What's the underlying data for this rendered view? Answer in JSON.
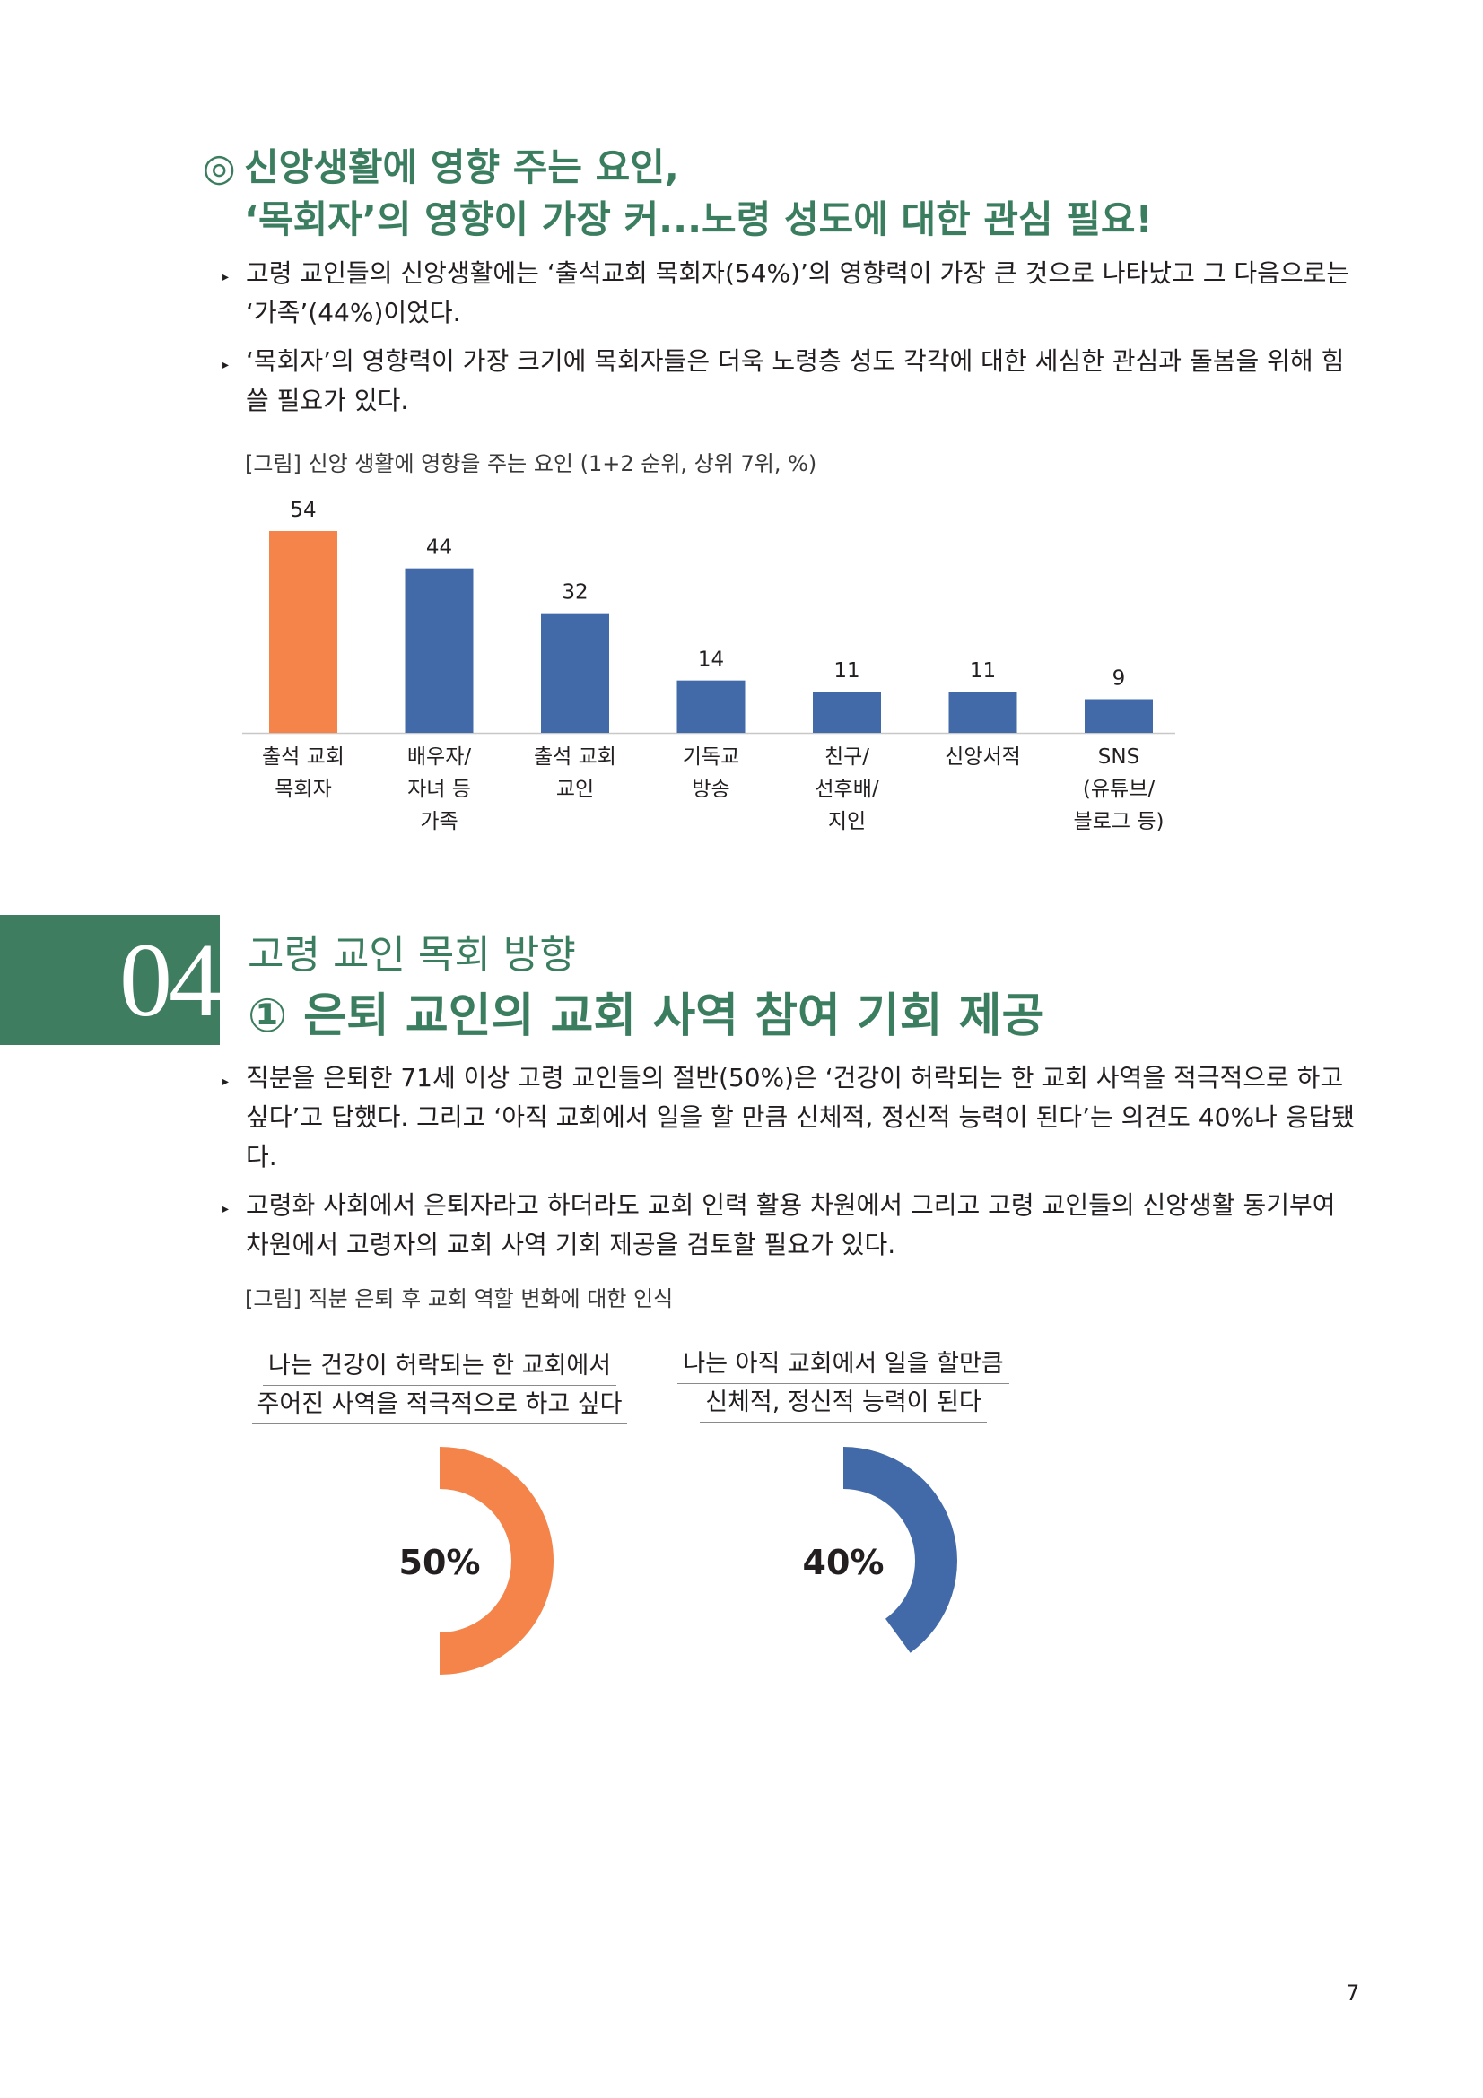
{
  "heading1": {
    "mark": "◎",
    "line1": "신앙생활에 영향 주는 요인,",
    "line2": "‘목회자’의 영향이 가장 커...노령 성도에 대한 관심 필요!"
  },
  "bullets1": [
    "고령 교인들의 신앙생활에는 ‘출석교회 목회자(54%)’의 영향력이 가장 큰 것으로 나타났고 그 다음으로는 ‘가족’(44%)이었다.",
    "‘목회자’의 영향력이 가장 크기에 목회자들은 더욱 노령층 성도 각각에 대한 세심한 관심과 돌봄을 위해 힘쓸 필요가 있다."
  ],
  "figure1_caption": "[그림] 신앙 생활에 영향을 주는 요인 (1+2 순위, 상위 7위, %)",
  "chart_data": {
    "type": "bar",
    "categories": [
      [
        "출석 교회",
        "목회자"
      ],
      [
        "배우자/",
        "자녀 등",
        "가족"
      ],
      [
        "출석 교회",
        "교인"
      ],
      [
        "기독교",
        "방송"
      ],
      [
        "친구/",
        "선후배/",
        "지인"
      ],
      [
        "신앙서적"
      ],
      [
        "SNS",
        "(유튜브/",
        "블로그 등)"
      ]
    ],
    "values": [
      54,
      44,
      32,
      14,
      11,
      11,
      9
    ],
    "colors": [
      "#f4844a",
      "#4269a8",
      "#4269a8",
      "#4269a8",
      "#4269a8",
      "#4269a8",
      "#4269a8"
    ],
    "ylim": [
      0,
      60
    ]
  },
  "section": {
    "number": "04",
    "subtitle": "고령 교인 목회 방향",
    "title": "① 은퇴 교인의 교회 사역 참여 기회 제공"
  },
  "bullets2": [
    "직분을 은퇴한 71세 이상 고령 교인들의 절반(50%)은 ‘건강이 허락되는 한 교회 사역을 적극적으로 하고 싶다’고 답했다. 그리고 ‘아직 교회에서 일을 할 만큼 신체적, 정신적 능력이 된다’는 의견도 40%나 응답됐다.",
    "고령화 사회에서 은퇴자라고 하더라도 교회 인력 활용 차원에서 그리고 고령 교인들의 신앙생활 동기부여 차원에서 고령자의 교회 사역 기회 제공을 검토할 필요가 있다."
  ],
  "figure2_caption": "[그림] 직분 은퇴 후 교회 역할 변화에 대한 인식",
  "donuts": [
    {
      "line1": "나는 건강이 허락되는 한 교회에서",
      "line2": "주어진 사역을 적극적으로 하고 싶다",
      "value": 50,
      "label": "50%",
      "color": "#f4844a"
    },
    {
      "line1": "나는 아직 교회에서 일을 할만큼",
      "line2": "신체적, 정신적 능력이 된다",
      "value": 40,
      "label": "40%",
      "color": "#4269a8"
    }
  ],
  "page_number": "7"
}
